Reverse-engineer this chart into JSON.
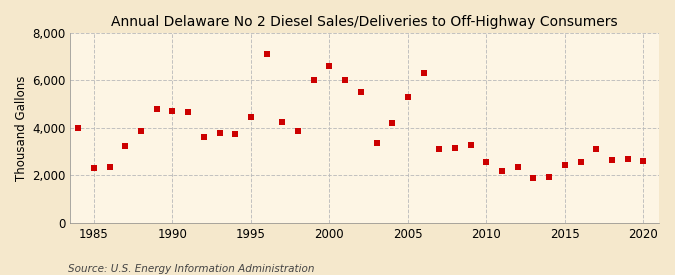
{
  "title": "Annual Delaware No 2 Diesel Sales/Deliveries to Off-Highway Consumers",
  "ylabel": "Thousand Gallons",
  "source": "Source: U.S. Energy Information Administration",
  "background_color": "#f5e8cc",
  "plot_background_color": "#fdf5e4",
  "years": [
    1984,
    1985,
    1986,
    1987,
    1988,
    1989,
    1990,
    1991,
    1992,
    1993,
    1994,
    1995,
    1996,
    1997,
    1998,
    1999,
    2000,
    2001,
    2002,
    2003,
    2004,
    2005,
    2006,
    2007,
    2008,
    2009,
    2010,
    2011,
    2012,
    2013,
    2014,
    2015,
    2016,
    2017,
    2018,
    2019,
    2020
  ],
  "values": [
    4000,
    2300,
    2350,
    3250,
    3850,
    4800,
    4700,
    4650,
    3600,
    3800,
    3750,
    4450,
    7100,
    4250,
    3850,
    6000,
    6600,
    6000,
    5500,
    3350,
    4200,
    5300,
    6300,
    3100,
    3150,
    3300,
    2550,
    2200,
    2350,
    1900,
    1950,
    2450,
    2550,
    3100,
    2650,
    2700,
    2600
  ],
  "marker_color": "#cc0000",
  "marker_size": 16,
  "ylim": [
    0,
    8000
  ],
  "yticks": [
    0,
    2000,
    4000,
    6000,
    8000
  ],
  "xlim": [
    1983.5,
    2021
  ],
  "xticks": [
    1985,
    1990,
    1995,
    2000,
    2005,
    2010,
    2015,
    2020
  ],
  "grid_color": "#bbbbbb",
  "title_fontsize": 10,
  "axis_fontsize": 8.5,
  "source_fontsize": 7.5
}
